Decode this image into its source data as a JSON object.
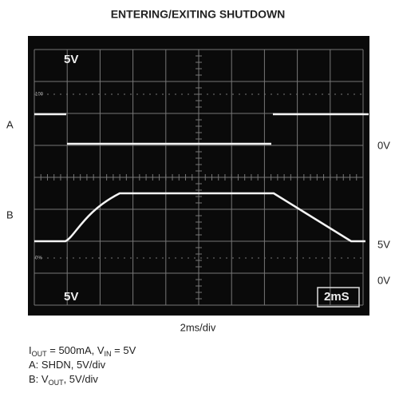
{
  "title": "ENTERING/EXITING SHUTDOWN",
  "screen": {
    "top_left": "5V",
    "bottom_left": "5V",
    "bottom_right": "2mS",
    "level_top": "100",
    "level_bottom": "0%"
  },
  "channels": {
    "a": "A",
    "b": "B"
  },
  "right_labels": [
    "0V",
    "5V",
    "0V"
  ],
  "x_caption": "2ms/div",
  "notes": [
    [
      "I",
      "OUT",
      " = 500mA, V",
      "IN",
      " = 5V"
    ],
    [
      "A:  SHDN, 5V/div"
    ],
    [
      "B:  V",
      "OUT",
      ", 5V/div"
    ]
  ]
}
